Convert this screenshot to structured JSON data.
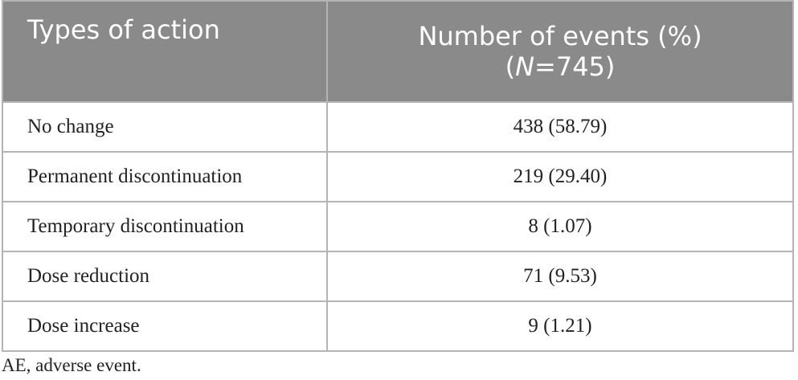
{
  "table": {
    "header": [
      "Types of action",
      {
        "line1": "Number of events (%)",
        "open": "(",
        "italic": "N",
        "rest": "=745)"
      }
    ],
    "rows": [
      [
        "No change",
        "438 (58.79)"
      ],
      [
        "Permanent discontinuation",
        "219 (29.40)"
      ],
      [
        "Temporary discontinuation",
        "8 (1.07)"
      ],
      [
        "Dose reduction",
        "71 (9.53)"
      ],
      [
        "Dose increase",
        "9 (1.21)"
      ]
    ]
  },
  "footnote": "AE, adverse event."
}
